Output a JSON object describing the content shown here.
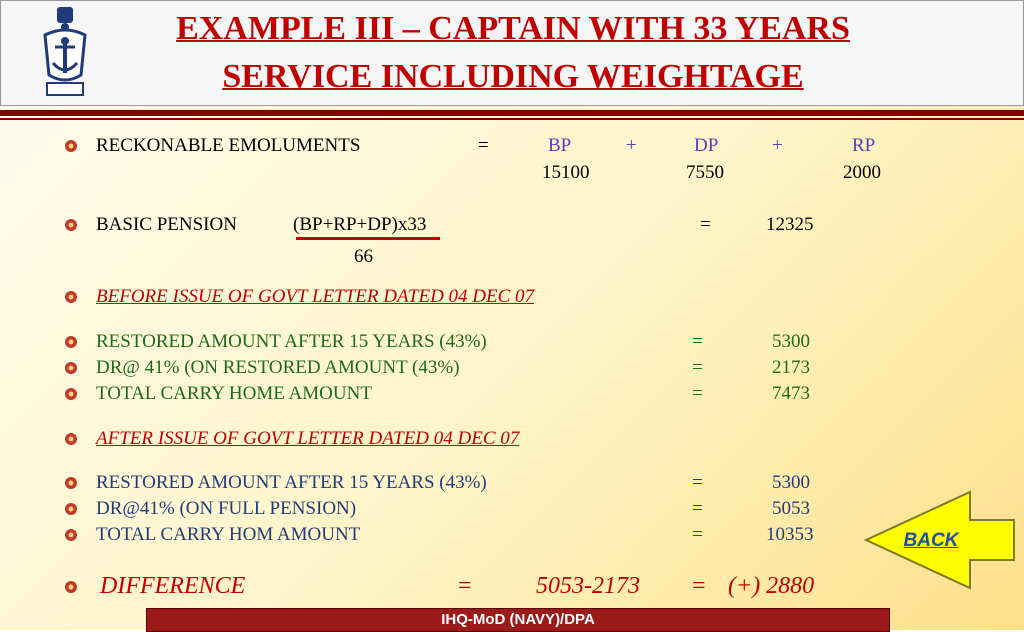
{
  "title": {
    "line1": "EXAMPLE III – CAPTAIN WITH 33 YEARS",
    "line2": "SERVICE INCLUDING WEIGHTAGE"
  },
  "emolument": {
    "label": "RECKONABLE EMOLUMENTS",
    "eq": "=",
    "bp_label": "BP",
    "plus1": "+",
    "dp_label": "DP",
    "plus2": "+",
    "rp_label": "RP",
    "bp_value": "15100",
    "dp_value": "7550",
    "rp_value": "2000"
  },
  "pension": {
    "label": "BASIC PENSION",
    "formula": "(BP+RP+DP)x33",
    "divisor": "66",
    "eq": "=",
    "value": "12325"
  },
  "before": {
    "heading": "BEFORE ISSUE OF GOVT LETTER DATED 04 DEC 07",
    "rows": [
      {
        "label": "RESTORED AMOUNT AFTER 15 YEARS (43%)",
        "eq": "=",
        "value": "5300"
      },
      {
        "label": "DR@ 41% (ON RESTORED AMOUNT (43%)",
        "eq": "=",
        "value": "2173"
      },
      {
        "label": "TOTAL CARRY HOME AMOUNT",
        "eq": "=",
        "value": "7473"
      }
    ]
  },
  "after": {
    "heading": "AFTER ISSUE OF GOVT LETTER DATED 04 DEC 07",
    "rows": [
      {
        "label": "RESTORED AMOUNT AFTER 15 YEARS (43%)",
        "eq": "=",
        "value": "5300"
      },
      {
        "label": "DR@41% (ON FULL PENSION)",
        "eq": "=",
        "value": "5053"
      },
      {
        "label": "TOTAL CARRY HOM AMOUNT",
        "eq": "=",
        "value": "10353"
      }
    ]
  },
  "difference": {
    "label": "DIFFERENCE",
    "eq1": "=",
    "expr": "5053-2173",
    "eq2": "=",
    "value": "(+) 2880"
  },
  "back_button": {
    "label": "BACK"
  },
  "footer": {
    "text": "IHQ-MoD (NAVY)/DPA"
  },
  "colors": {
    "title": "#c00000",
    "navy": "#1f3b7a",
    "green": "#1a6b1a",
    "footer": "#9b1b1b",
    "arrow": "#ffff00"
  },
  "icons": {
    "emblem": "navy-crest-icon",
    "bullet": "gear-bullet-icon"
  }
}
